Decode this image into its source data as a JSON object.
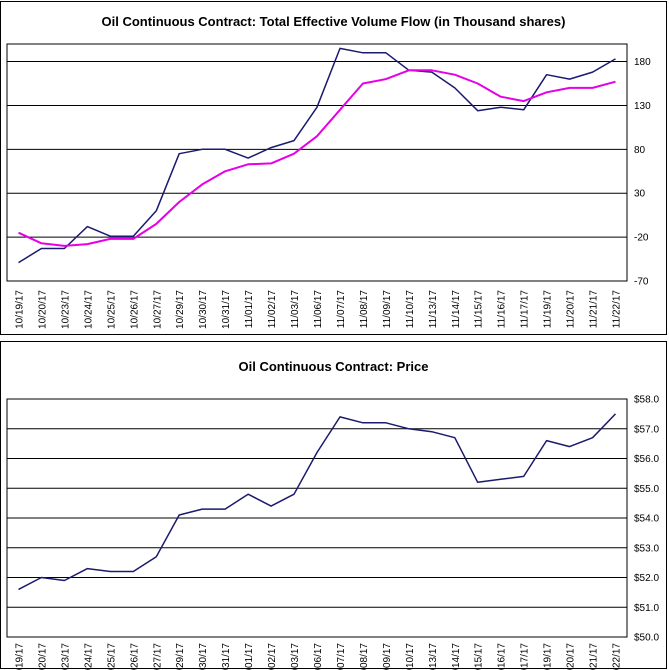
{
  "colors": {
    "price_line": "#1a1a6e",
    "moving_average": "#e600e6",
    "grid": "#000000",
    "background": "#ffffff"
  },
  "x_dates": [
    "10/19/17",
    "10/20/17",
    "10/23/17",
    "10/24/17",
    "10/25/17",
    "10/26/17",
    "10/27/17",
    "10/29/17",
    "10/30/17",
    "10/31/17",
    "11/01/17",
    "11/02/17",
    "11/03/17",
    "11/06/17",
    "11/07/17",
    "11/08/17",
    "11/09/17",
    "11/10/17",
    "11/13/17",
    "11/14/17",
    "11/15/17",
    "11/16/17",
    "11/17/17",
    "11/19/17",
    "11/20/17",
    "11/21/17",
    "11/22/17"
  ],
  "chart_data": [
    {
      "type": "line",
      "title": "Oil Continuous Contract: Total Effective Volume Flow (in Thousand shares)",
      "ylim": [
        -70,
        200
      ],
      "yticks": [
        "-70",
        "-20",
        "30",
        "80",
        "130",
        "180"
      ],
      "yticks_values": [
        -70,
        -20,
        30,
        80,
        130,
        180
      ],
      "grid": true,
      "series": [
        {
          "key": "flow",
          "values": [
            -49,
            -33,
            -33,
            -8,
            -19,
            -19,
            10,
            75,
            80,
            80,
            70,
            82,
            90,
            128,
            195,
            190,
            190,
            170,
            168,
            150,
            124,
            128,
            125,
            165,
            160,
            168,
            183
          ]
        },
        {
          "key": "ma",
          "values": [
            -15,
            -27,
            -30,
            -28,
            -22,
            -22,
            -5,
            20,
            40,
            55,
            63,
            64,
            75,
            95,
            125,
            155,
            160,
            170,
            170,
            165,
            155,
            140,
            135,
            145,
            150,
            150,
            157
          ]
        }
      ]
    },
    {
      "type": "line",
      "title": "Oil Continuous Contract: Price",
      "ylim": [
        50,
        58
      ],
      "yticks": [
        "$50.0",
        "$51.0",
        "$52.0",
        "$53.0",
        "$54.0",
        "$55.0",
        "$56.0",
        "$57.0",
        "$58.0"
      ],
      "yticks_values": [
        50,
        51,
        52,
        53,
        54,
        55,
        56,
        57,
        58
      ],
      "grid": true,
      "series": [
        {
          "key": "price",
          "values": [
            51.6,
            52.0,
            51.9,
            52.3,
            52.2,
            52.2,
            52.7,
            54.1,
            54.3,
            54.3,
            54.8,
            54.4,
            54.8,
            56.2,
            57.4,
            57.2,
            57.2,
            57.0,
            56.9,
            56.7,
            55.2,
            55.3,
            55.4,
            56.6,
            56.4,
            56.7,
            57.5
          ]
        }
      ]
    }
  ]
}
